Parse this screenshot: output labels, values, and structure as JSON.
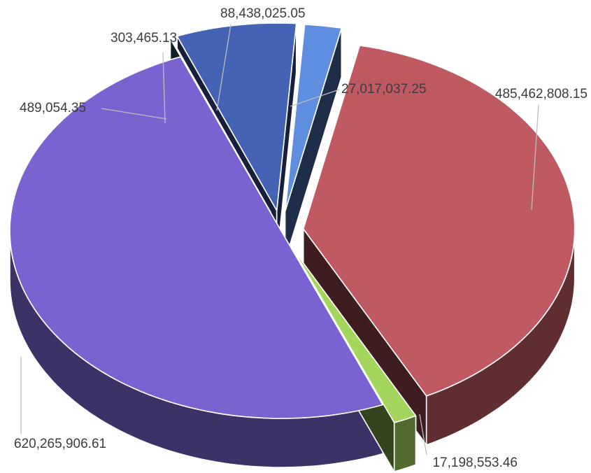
{
  "chart_data": {
    "type": "pie",
    "style": "3d-exploded",
    "title": "",
    "legend": "none",
    "slices": [
      {
        "value": 485462808.15,
        "label": "485,462,808.15",
        "color": "#c05a62"
      },
      {
        "value": 17198553.46,
        "label": "17,198,553.46",
        "color": "#a4d65e"
      },
      {
        "value": 620265906.61,
        "label": "620,265,906.61",
        "color": "#7a63d0"
      },
      {
        "value": 489054.35,
        "label": "489,054.35",
        "color": "#2c5f7a"
      },
      {
        "value": 303465.13,
        "label": "303,465.13",
        "color": "#1f2f4f"
      },
      {
        "value": 88438025.05,
        "label": "88,438,025.05",
        "color": "#4563b4"
      },
      {
        "value": 27017037.25,
        "label": "27,017,037.25",
        "color": "#5f8de0"
      }
    ]
  }
}
